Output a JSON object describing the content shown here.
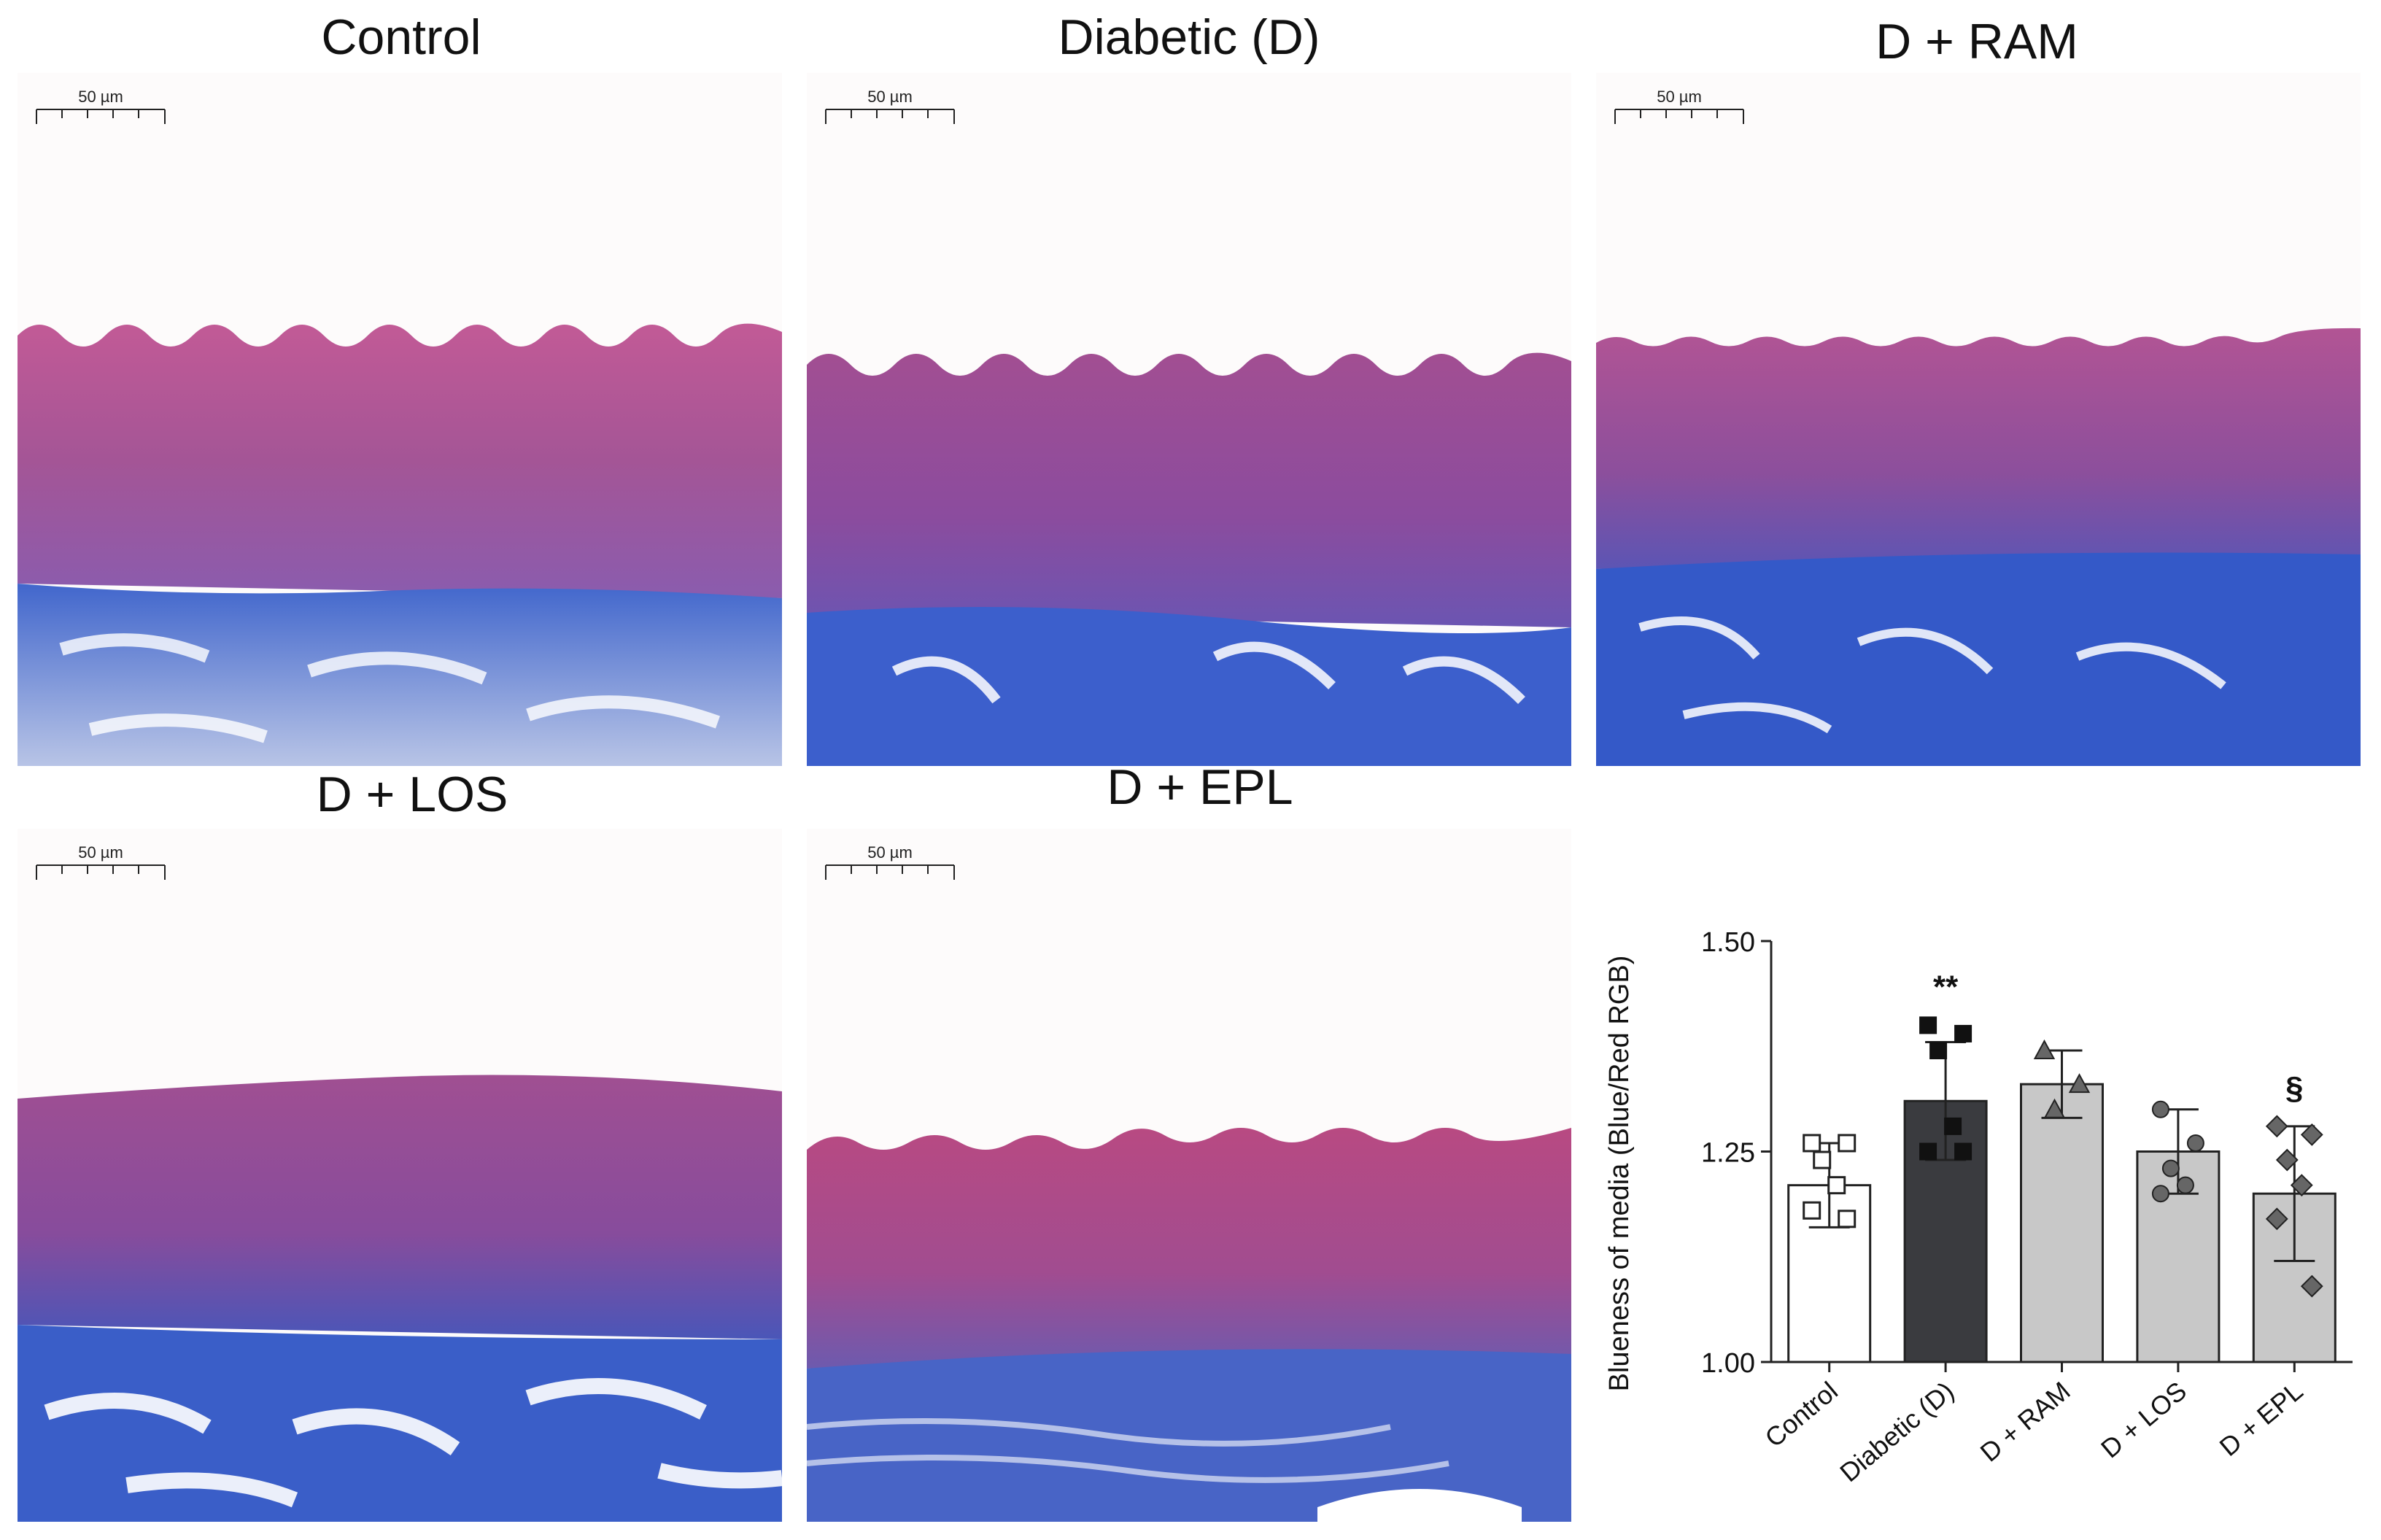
{
  "panels": [
    {
      "title": "Control",
      "scale_label": "50 µm",
      "style": "control"
    },
    {
      "title": "Diabetic (D)",
      "scale_label": "50 µm",
      "style": "diabetic"
    },
    {
      "title": "D + RAM",
      "scale_label": "50 µm",
      "style": "ram"
    },
    {
      "title": "D + LOS",
      "scale_label": "50 µm",
      "style": "los"
    },
    {
      "title": "D + EPL",
      "scale_label": "50 µm",
      "style": "epl"
    }
  ],
  "colors": {
    "media_pink": "#b0508c",
    "media_purple": "#7b4a9e",
    "adventitia_blue": "#3a5cc8",
    "adventitia_light": "#8da0d8",
    "background": "#fdfbfb",
    "bar_control": "#ffffff",
    "bar_diabetic": "#3a3b3f",
    "bar_treated": "#c8c8c8"
  },
  "chart_data": {
    "type": "bar",
    "categories": [
      "Control",
      "Diabetic (D)",
      "D + RAM",
      "D + LOS",
      "D + EPL"
    ],
    "values": [
      1.21,
      1.31,
      1.33,
      1.25,
      1.2
    ],
    "errors": [
      0.05,
      0.07,
      0.04,
      0.05,
      0.08
    ],
    "points": [
      [
        1.26,
        1.26,
        1.24,
        1.21,
        1.18,
        1.17
      ],
      [
        1.4,
        1.39,
        1.37,
        1.28,
        1.25,
        1.25
      ],
      [
        1.37,
        1.33,
        1.3
      ],
      [
        1.3,
        1.26,
        1.23,
        1.21,
        1.2
      ],
      [
        1.28,
        1.27,
        1.24,
        1.21,
        1.17,
        1.09
      ]
    ],
    "markers": [
      "square-open",
      "square-filled",
      "triangle",
      "circle",
      "diamond"
    ],
    "significance": [
      "",
      "**",
      "",
      "",
      "§"
    ],
    "title": "",
    "xlabel": "",
    "ylabel": "Blueness of media (Blue/Red RGB)",
    "ylim": [
      1.0,
      1.5
    ],
    "yticks": [
      "1.00",
      "1.25",
      "1.50"
    ],
    "grid": false,
    "legend": "none"
  }
}
